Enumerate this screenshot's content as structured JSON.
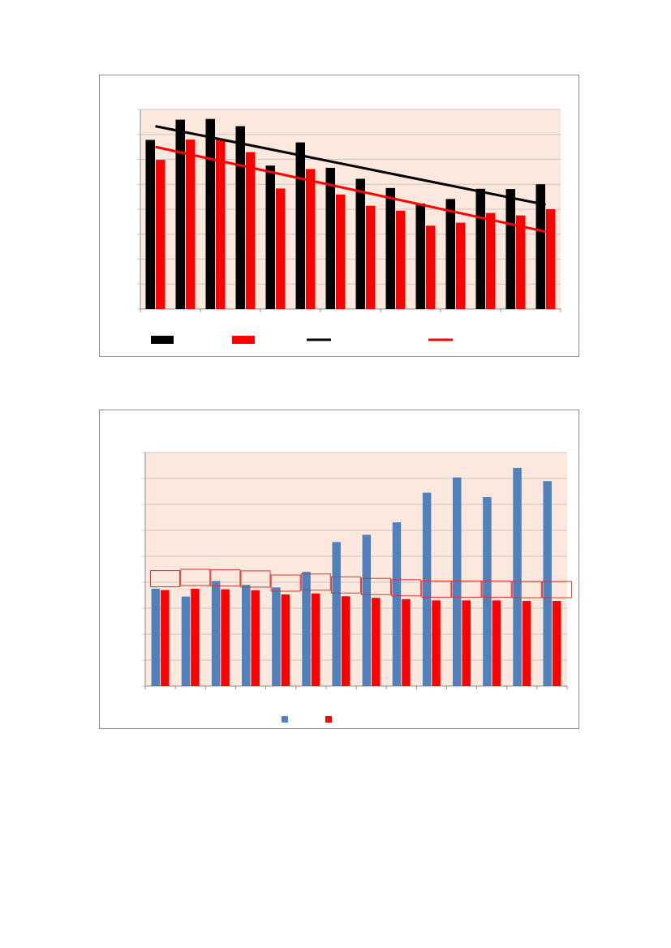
{
  "colors": {
    "plot_background": "#fce8dc",
    "gridline": "#c8c8c8",
    "axis": "#8c8c8c",
    "black_series": "#000000",
    "red_series": "#ff0000",
    "blue_series": "#4f81bd",
    "label_box_border": "#e03030"
  },
  "chart_data": [
    {
      "type": "bar",
      "title": "",
      "xlabel": "",
      "ylabel": "",
      "grid": true,
      "legend_position": "bottom",
      "ylim": [
        0,
        8
      ],
      "categories": [
        "",
        "",
        "",
        "",
        "",
        "",
        "",
        "",
        "",
        "",
        "",
        "",
        "",
        ""
      ],
      "series": [
        {
          "values": [
            6.78,
            7.59,
            7.62,
            7.33,
            5.75,
            6.68,
            5.66,
            5.22,
            4.85,
            4.23,
            4.41,
            4.82,
            4.81,
            5.0
          ]
        },
        {
          "values": [
            5.98,
            6.79,
            6.79,
            6.29,
            4.83,
            5.61,
            4.59,
            4.14,
            3.94,
            3.34,
            3.46,
            3.85,
            3.75,
            4.0
          ]
        }
      ],
      "trendlines": [
        {
          "start": 7.33,
          "end": 4.18
        },
        {
          "start": 6.5,
          "end": 3.1
        }
      ],
      "legend": [
        {
          "marker": "box",
          "label": ""
        },
        {
          "marker": "box",
          "label": ""
        },
        {
          "marker": "line",
          "label": ""
        },
        {
          "marker": "line",
          "label": ""
        }
      ]
    },
    {
      "type": "bar",
      "title": "",
      "xlabel": "",
      "ylabel": "",
      "grid": true,
      "legend_position": "bottom",
      "ylim": [
        0,
        9
      ],
      "categories": [
        "",
        "",
        "",
        "",
        "",
        "",
        "",
        "",
        "",
        "",
        "",
        "",
        "",
        ""
      ],
      "series": [
        {
          "values": [
            3.75,
            3.45,
            4.05,
            3.9,
            3.8,
            4.4,
            5.55,
            5.83,
            6.31,
            7.45,
            8.04,
            7.28,
            8.41,
            7.9
          ]
        },
        {
          "values": [
            3.7,
            3.75,
            3.73,
            3.69,
            3.53,
            3.57,
            3.46,
            3.4,
            3.35,
            3.3,
            3.3,
            3.3,
            3.28,
            3.28
          ]
        }
      ],
      "value_labels": [
        "",
        "",
        "",
        "",
        "",
        "",
        "",
        "",
        "",
        "",
        "",
        "",
        "",
        ""
      ],
      "legend": [
        {
          "marker": "box",
          "label": ""
        },
        {
          "marker": "box",
          "label": ""
        }
      ]
    }
  ]
}
